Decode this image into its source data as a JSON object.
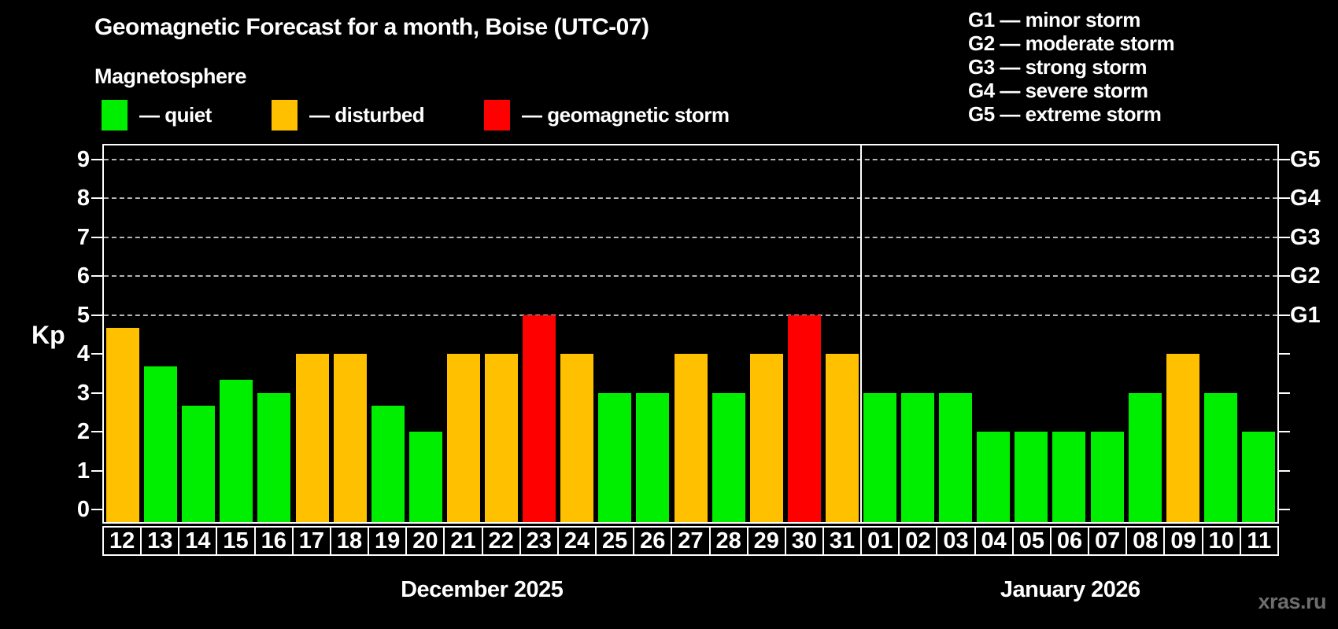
{
  "title": "Geomagnetic Forecast for a month, Boise (UTC-07)",
  "subtitle": "Magnetosphere",
  "legend": {
    "items": [
      {
        "state": "quiet",
        "label": "— quiet"
      },
      {
        "state": "disturbed",
        "label": "— disturbed"
      },
      {
        "state": "storm",
        "label": "— geomagnetic storm"
      }
    ]
  },
  "g_scale_legend": {
    "items": [
      "G1 — minor storm",
      "G2 — moderate storm",
      "G3 — strong storm",
      "G4 — severe storm",
      "G5 — extreme storm"
    ]
  },
  "watermark": "xras.ru",
  "chart_data": {
    "type": "bar",
    "title": "Geomagnetic Forecast for a month, Boise (UTC-07)",
    "ylabel": "Kp",
    "ylim": [
      0,
      9
    ],
    "y_ticks": [
      0,
      1,
      2,
      3,
      4,
      5,
      6,
      7,
      8,
      9
    ],
    "gridlines_at_kp": [
      5,
      6,
      7,
      8,
      9
    ],
    "grid_style": "dashed",
    "legend_position": "top",
    "right_axis_labels": [
      {
        "kp": 5,
        "label": "G1"
      },
      {
        "kp": 6,
        "label": "G2"
      },
      {
        "kp": 7,
        "label": "G3"
      },
      {
        "kp": 8,
        "label": "G4"
      },
      {
        "kp": 9,
        "label": "G5"
      }
    ],
    "colors": {
      "quiet": "#00ee00",
      "disturbed": "#ffc000",
      "storm": "#ff0000"
    },
    "months": [
      {
        "label": "December 2025",
        "days": [
          {
            "day": "12",
            "kp": 4.67,
            "state": "disturbed"
          },
          {
            "day": "13",
            "kp": 3.67,
            "state": "quiet"
          },
          {
            "day": "14",
            "kp": 2.67,
            "state": "quiet"
          },
          {
            "day": "15",
            "kp": 3.33,
            "state": "quiet"
          },
          {
            "day": "16",
            "kp": 3,
            "state": "quiet"
          },
          {
            "day": "17",
            "kp": 4,
            "state": "disturbed"
          },
          {
            "day": "18",
            "kp": 4,
            "state": "disturbed"
          },
          {
            "day": "19",
            "kp": 2.67,
            "state": "quiet"
          },
          {
            "day": "20",
            "kp": 2,
            "state": "quiet"
          },
          {
            "day": "21",
            "kp": 4,
            "state": "disturbed"
          },
          {
            "day": "22",
            "kp": 4,
            "state": "disturbed"
          },
          {
            "day": "23",
            "kp": 5,
            "state": "storm"
          },
          {
            "day": "24",
            "kp": 4,
            "state": "disturbed"
          },
          {
            "day": "25",
            "kp": 3,
            "state": "quiet"
          },
          {
            "day": "26",
            "kp": 3,
            "state": "quiet"
          },
          {
            "day": "27",
            "kp": 4,
            "state": "disturbed"
          },
          {
            "day": "28",
            "kp": 3,
            "state": "quiet"
          },
          {
            "day": "29",
            "kp": 4,
            "state": "disturbed"
          },
          {
            "day": "30",
            "kp": 5,
            "state": "storm"
          },
          {
            "day": "31",
            "kp": 4,
            "state": "disturbed"
          }
        ]
      },
      {
        "label": "January 2026",
        "days": [
          {
            "day": "01",
            "kp": 3,
            "state": "quiet"
          },
          {
            "day": "02",
            "kp": 3,
            "state": "quiet"
          },
          {
            "day": "03",
            "kp": 3,
            "state": "quiet"
          },
          {
            "day": "04",
            "kp": 2,
            "state": "quiet"
          },
          {
            "day": "05",
            "kp": 2,
            "state": "quiet"
          },
          {
            "day": "06",
            "kp": 2,
            "state": "quiet"
          },
          {
            "day": "07",
            "kp": 2,
            "state": "quiet"
          },
          {
            "day": "08",
            "kp": 3,
            "state": "quiet"
          },
          {
            "day": "09",
            "kp": 4,
            "state": "disturbed"
          },
          {
            "day": "10",
            "kp": 3,
            "state": "quiet"
          },
          {
            "day": "11",
            "kp": 2,
            "state": "quiet"
          }
        ]
      }
    ]
  }
}
